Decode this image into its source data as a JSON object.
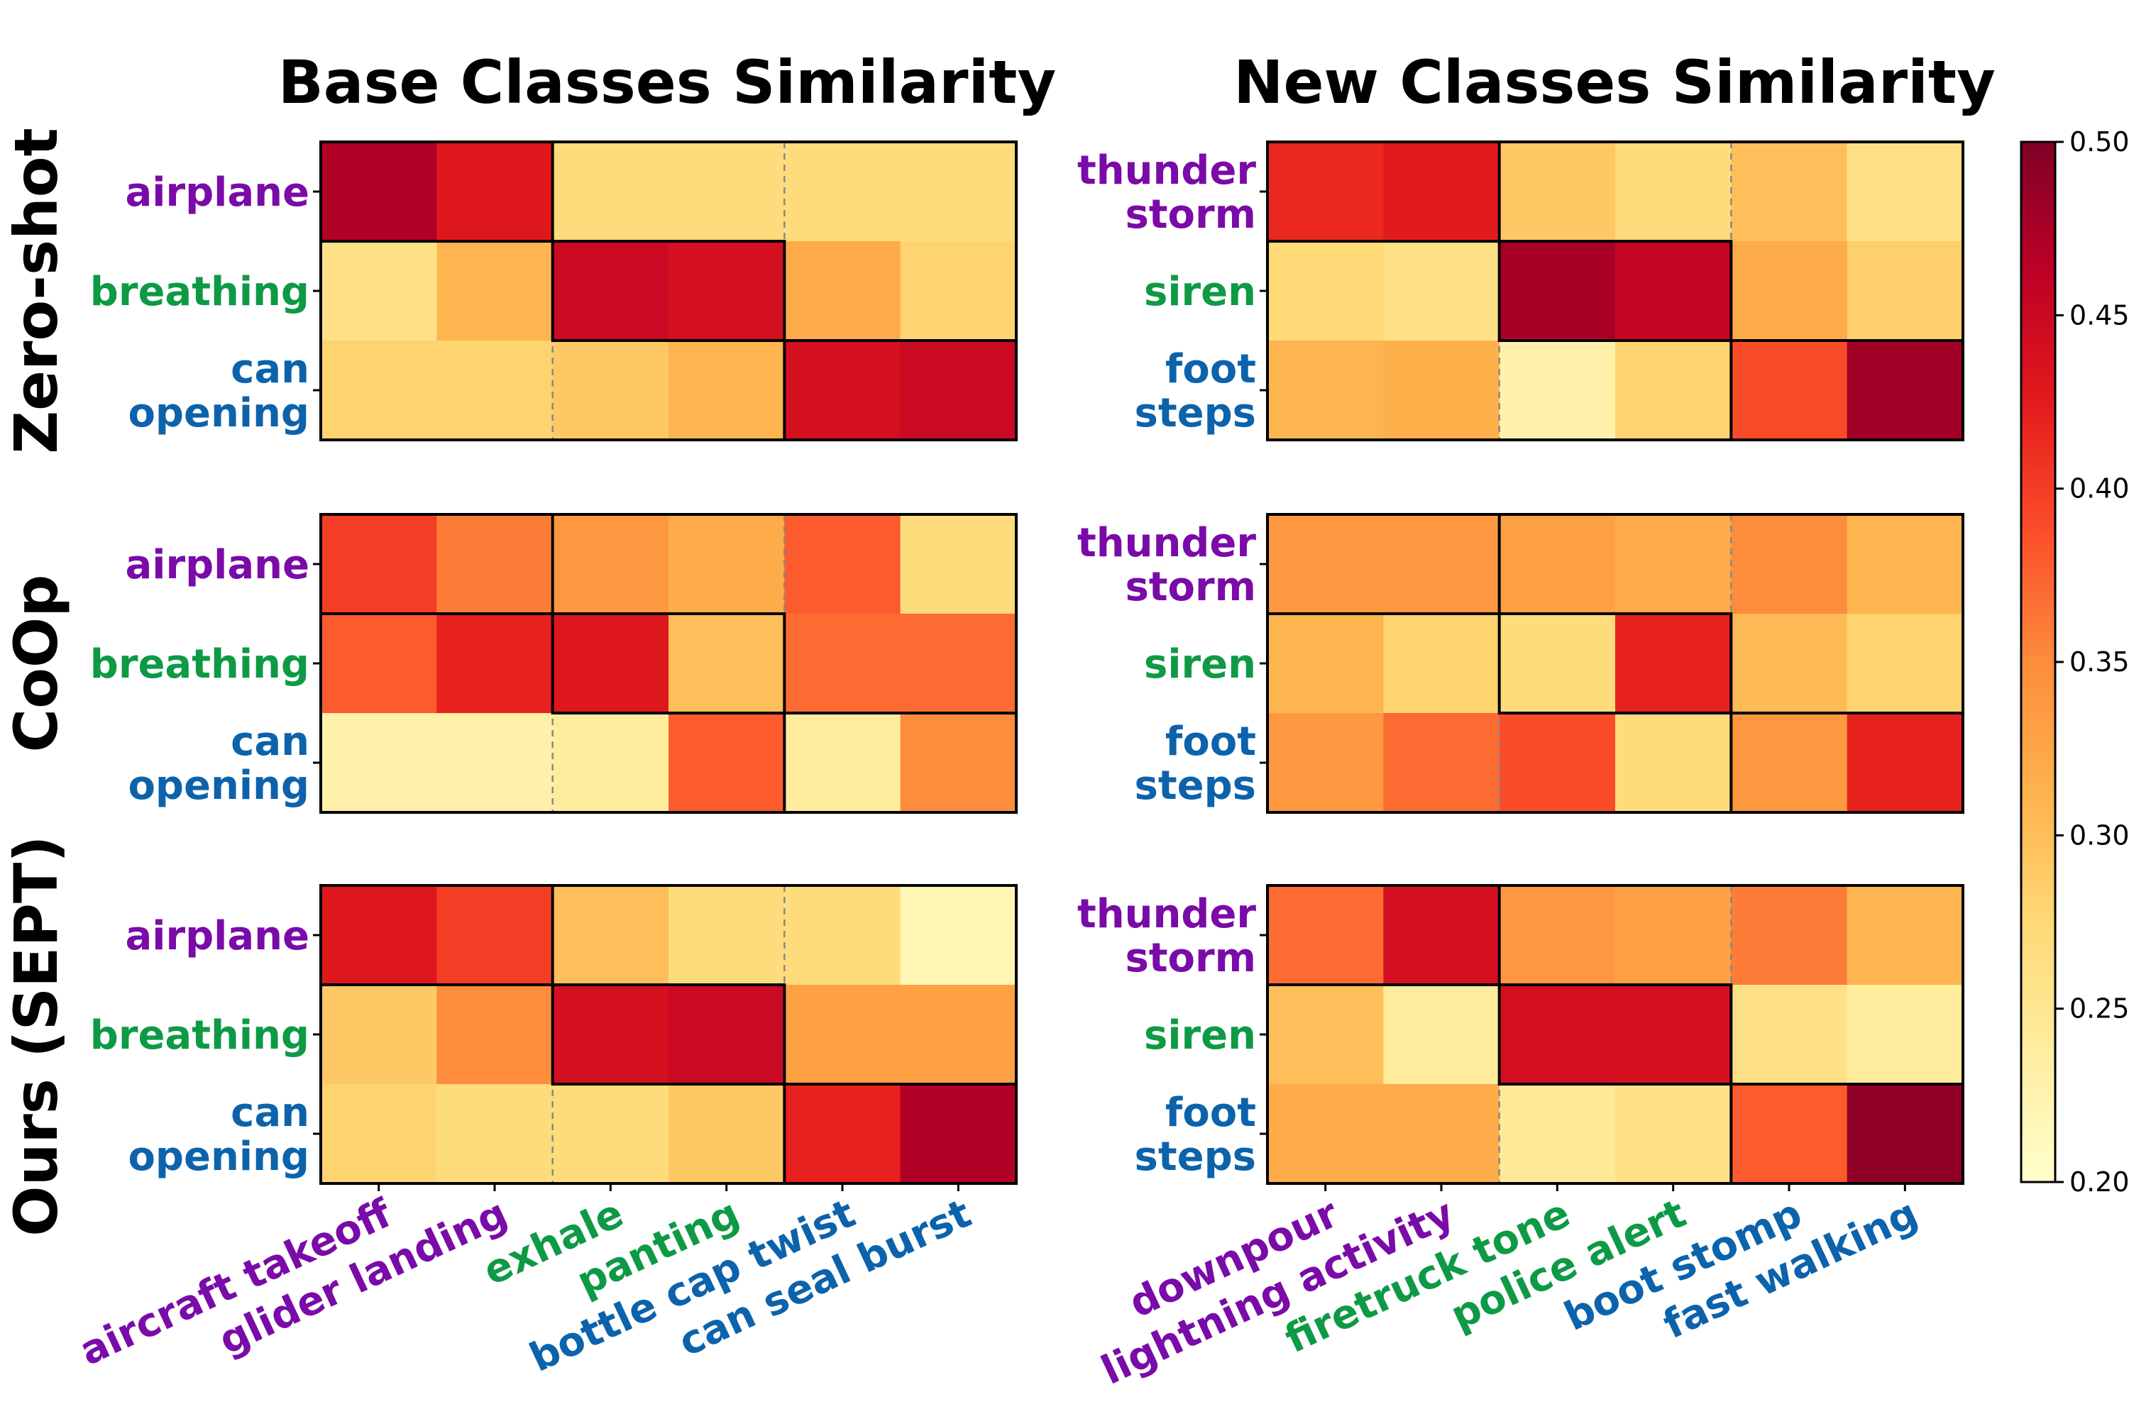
{
  "chart_data": {
    "type": "heatmap",
    "colorbar": {
      "min": 0.2,
      "max": 0.5,
      "ticks": [
        "0.20",
        "0.25",
        "0.30",
        "0.35",
        "0.40",
        "0.45",
        "0.50"
      ],
      "colormap": "YlOrRd"
    },
    "group_colors": [
      "#7a0ba8",
      "#0e9a45",
      "#0c63ab"
    ],
    "panels": [
      {
        "title": "Base Classes Similarity",
        "rows": [
          {
            "lines": [
              "airplane"
            ]
          },
          {
            "lines": [
              "breathing"
            ]
          },
          {
            "lines": [
              "can",
              "opening"
            ]
          }
        ],
        "columns": [
          "aircraft takeoff",
          "glider landing",
          "exhale",
          "panting",
          "bottle cap twist",
          "can seal burst"
        ]
      },
      {
        "title": "New Classes Similarity",
        "rows": [
          {
            "lines": [
              "thunder",
              "storm"
            ]
          },
          {
            "lines": [
              "siren"
            ]
          },
          {
            "lines": [
              "foot",
              "steps"
            ]
          }
        ],
        "columns": [
          "downpour",
          "lightning activity",
          "firetruck tone",
          "police alert",
          "boot stomp",
          "fast walking"
        ]
      }
    ],
    "methods": [
      {
        "name": "Zero-shot",
        "base": [
          [
            0.47,
            0.43,
            0.27,
            0.27,
            0.27,
            0.27
          ],
          [
            0.26,
            0.31,
            0.45,
            0.44,
            0.32,
            0.28
          ],
          [
            0.28,
            0.28,
            0.29,
            0.31,
            0.44,
            0.45
          ]
        ],
        "new": [
          [
            0.415,
            0.425,
            0.29,
            0.27,
            0.3,
            0.26
          ],
          [
            0.275,
            0.26,
            0.475,
            0.455,
            0.32,
            0.285
          ],
          [
            0.31,
            0.315,
            0.23,
            0.28,
            0.39,
            0.48
          ]
        ]
      },
      {
        "name": "CoOp",
        "base": [
          [
            0.4,
            0.36,
            0.34,
            0.32,
            0.38,
            0.27
          ],
          [
            0.38,
            0.42,
            0.43,
            0.3,
            0.37,
            0.37
          ],
          [
            0.23,
            0.23,
            0.24,
            0.38,
            0.24,
            0.35
          ]
        ],
        "new": [
          [
            0.34,
            0.34,
            0.33,
            0.32,
            0.35,
            0.31
          ],
          [
            0.31,
            0.28,
            0.27,
            0.42,
            0.305,
            0.28
          ],
          [
            0.34,
            0.37,
            0.39,
            0.27,
            0.34,
            0.42
          ]
        ]
      },
      {
        "name": "Ours (SEPT)",
        "base": [
          [
            0.43,
            0.4,
            0.3,
            0.27,
            0.27,
            0.22
          ],
          [
            0.29,
            0.35,
            0.44,
            0.45,
            0.33,
            0.33
          ],
          [
            0.28,
            0.27,
            0.27,
            0.29,
            0.42,
            0.47
          ]
        ],
        "new": [
          [
            0.37,
            0.44,
            0.34,
            0.33,
            0.36,
            0.31
          ],
          [
            0.3,
            0.24,
            0.44,
            0.44,
            0.26,
            0.24
          ],
          [
            0.32,
            0.32,
            0.245,
            0.26,
            0.38,
            0.49
          ]
        ]
      }
    ]
  }
}
